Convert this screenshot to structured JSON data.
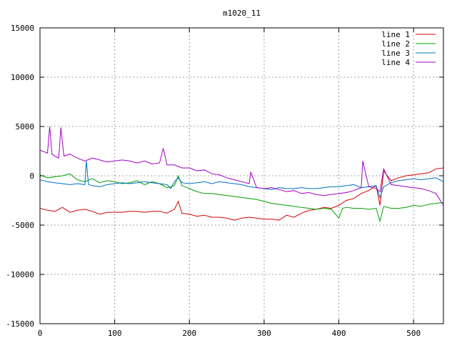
{
  "chart_data": {
    "type": "line",
    "title": "m1020_11",
    "xlabel": "",
    "ylabel": "",
    "xlim": [
      0,
      540
    ],
    "ylim": [
      -15000,
      15000
    ],
    "x_ticks": [
      0,
      100,
      200,
      300,
      400,
      500
    ],
    "y_ticks": [
      -15000,
      -10000,
      -5000,
      0,
      5000,
      10000,
      15000
    ],
    "grid": true,
    "legend_position": "top-right",
    "series": [
      {
        "name": "line 1",
        "color": "#d40000",
        "x": [
          0,
          10,
          20,
          30,
          40,
          50,
          60,
          70,
          80,
          90,
          100,
          110,
          120,
          130,
          140,
          150,
          160,
          170,
          180,
          185,
          190,
          200,
          210,
          220,
          230,
          240,
          250,
          260,
          270,
          280,
          290,
          300,
          310,
          320,
          330,
          340,
          350,
          360,
          370,
          380,
          390,
          400,
          410,
          420,
          430,
          440,
          450,
          455,
          460,
          470,
          480,
          490,
          500,
          510,
          520,
          530,
          540
        ],
        "y": [
          -3300,
          -3500,
          -3600,
          -3200,
          -3700,
          -3500,
          -3400,
          -3600,
          -3900,
          -3700,
          -3700,
          -3700,
          -3600,
          -3600,
          -3700,
          -3600,
          -3600,
          -3800,
          -3400,
          -2600,
          -3800,
          -3900,
          -4100,
          -4000,
          -4200,
          -4200,
          -4300,
          -4500,
          -4300,
          -4200,
          -4300,
          -4400,
          -4400,
          -4500,
          -4000,
          -4200,
          -3800,
          -3500,
          -3400,
          -3200,
          -3300,
          -3000,
          -2500,
          -2300,
          -1800,
          -1500,
          -1000,
          -3000,
          500,
          -500,
          -200,
          0,
          100,
          200,
          300,
          700,
          800
        ]
      },
      {
        "name": "line 2",
        "color": "#00a000",
        "x": [
          0,
          10,
          20,
          30,
          40,
          50,
          60,
          70,
          80,
          90,
          100,
          110,
          120,
          130,
          140,
          150,
          160,
          170,
          180,
          185,
          190,
          200,
          210,
          220,
          230,
          240,
          250,
          260,
          270,
          280,
          290,
          300,
          310,
          320,
          330,
          340,
          350,
          360,
          370,
          380,
          390,
          400,
          405,
          410,
          420,
          430,
          440,
          450,
          455,
          460,
          470,
          480,
          490,
          500,
          510,
          520,
          530,
          540
        ],
        "y": [
          100,
          -200,
          -100,
          0,
          200,
          -400,
          -600,
          -300,
          -700,
          -500,
          -600,
          -800,
          -700,
          -500,
          -900,
          -600,
          -800,
          -1200,
          -1000,
          0,
          -1000,
          -1300,
          -1600,
          -1800,
          -1800,
          -1900,
          -2000,
          -2100,
          -2200,
          -2300,
          -2400,
          -2600,
          -2800,
          -2900,
          -3000,
          -3100,
          -3200,
          -3300,
          -3400,
          -3300,
          -3400,
          -4300,
          -3300,
          -3200,
          -3300,
          -3300,
          -3400,
          -3300,
          -4600,
          -3100,
          -3300,
          -3300,
          -3200,
          -3000,
          -3100,
          -2900,
          -2800,
          -2700
        ]
      },
      {
        "name": "line 3",
        "color": "#0070c0",
        "x": [
          0,
          10,
          20,
          30,
          40,
          50,
          60,
          62,
          65,
          70,
          80,
          90,
          100,
          110,
          120,
          130,
          140,
          150,
          160,
          170,
          175,
          180,
          185,
          190,
          200,
          210,
          220,
          230,
          240,
          250,
          260,
          270,
          280,
          290,
          300,
          310,
          320,
          330,
          340,
          350,
          360,
          370,
          380,
          390,
          400,
          410,
          420,
          430,
          440,
          450,
          455,
          460,
          470,
          480,
          490,
          500,
          510,
          520,
          530,
          540
        ],
        "y": [
          -400,
          -600,
          -700,
          -800,
          -900,
          -800,
          -900,
          1500,
          -900,
          -1000,
          -1100,
          -900,
          -800,
          -700,
          -800,
          -700,
          -600,
          -700,
          -800,
          -900,
          -1300,
          -600,
          -200,
          -700,
          -800,
          -700,
          -600,
          -800,
          -600,
          -700,
          -800,
          -900,
          -1100,
          -1200,
          -1300,
          -1400,
          -1200,
          -1300,
          -1300,
          -1200,
          -1300,
          -1300,
          -1200,
          -1100,
          -1100,
          -1000,
          -900,
          -1200,
          -1100,
          -1000,
          -2200,
          -1100,
          -700,
          -500,
          -400,
          -300,
          -400,
          -300,
          -200,
          -600
        ]
      },
      {
        "name": "line 4",
        "color": "#a000c8",
        "x": [
          0,
          10,
          13,
          16,
          20,
          25,
          28,
          32,
          40,
          50,
          60,
          70,
          80,
          90,
          100,
          110,
          120,
          130,
          140,
          150,
          160,
          165,
          170,
          180,
          190,
          200,
          210,
          220,
          230,
          240,
          250,
          260,
          270,
          280,
          282,
          290,
          300,
          310,
          320,
          330,
          340,
          350,
          360,
          370,
          380,
          390,
          400,
          410,
          420,
          430,
          432,
          440,
          450,
          455,
          460,
          470,
          480,
          490,
          500,
          510,
          520,
          530,
          540
        ],
        "y": [
          2600,
          2300,
          5000,
          2200,
          2000,
          1800,
          4900,
          2000,
          2200,
          1800,
          1500,
          1800,
          1600,
          1400,
          1500,
          1600,
          1500,
          1300,
          1500,
          1200,
          1300,
          2800,
          1100,
          1100,
          800,
          800,
          500,
          600,
          200,
          100,
          -200,
          -400,
          -600,
          -800,
          400,
          -1200,
          -1300,
          -1200,
          -1400,
          -1600,
          -1500,
          -1800,
          -1700,
          -1900,
          -2000,
          -1900,
          -1800,
          -1700,
          -1500,
          -1200,
          1500,
          -1100,
          -1300,
          -1600,
          700,
          -900,
          -1000,
          -1100,
          -1200,
          -1300,
          -1500,
          -1800,
          -3000
        ]
      }
    ]
  }
}
